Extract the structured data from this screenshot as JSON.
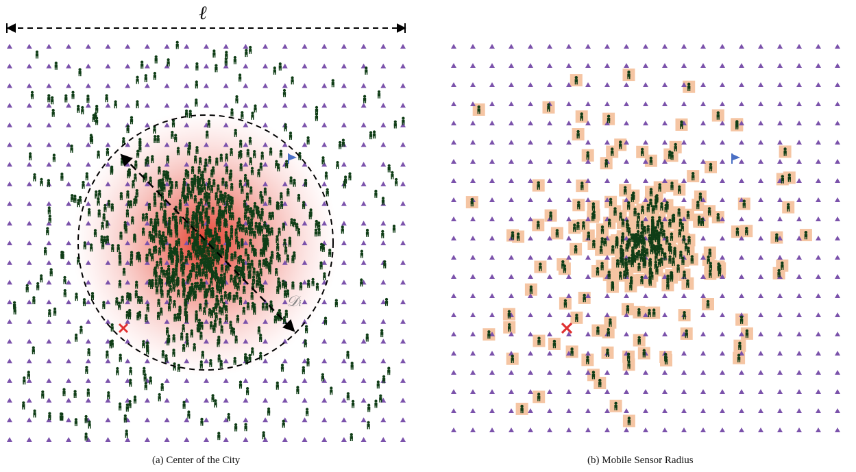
{
  "annotations": {
    "length_label": "ℓ",
    "diameter_label": "𝒟ᵢ"
  },
  "panels": [
    {
      "id": "a",
      "caption": "(a) Center of the City"
    },
    {
      "id": "b",
      "caption": "(b) Mobile Sensor Radius"
    }
  ],
  "colors": {
    "sensor_triangle": "#7b52ab",
    "person": "#0f3d16",
    "center_glow": "#e0301e",
    "sensor_radius_patch": "#f5c5a3",
    "target_cross": "#e03030",
    "flag": "#4a6fc4",
    "dashed_lines": "#000000"
  },
  "icons": {
    "sensor": "triangle-icon",
    "person": "person-icon",
    "target": "cross-icon",
    "destination": "flag-icon"
  }
}
